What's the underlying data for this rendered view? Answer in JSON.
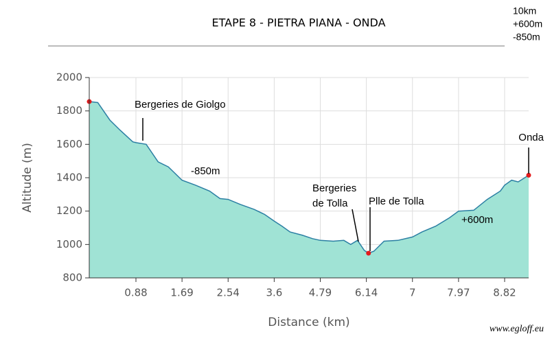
{
  "chart_data": {
    "type": "area",
    "title": "ETAPE 8 - PIETRA PIANA - ONDA",
    "x_label": "Distance (km)",
    "y_label": "Altitude (m)",
    "x": [
      0,
      0.16,
      0.39,
      0.58,
      0.82,
      0.88,
      1.06,
      1.27,
      1.45,
      1.69,
      1.94,
      2.2,
      2.39,
      2.54,
      2.82,
      3.14,
      3.38,
      3.6,
      3.8,
      4.01,
      4.33,
      4.59,
      4.79,
      5.17,
      5.48,
      5.68,
      5.88,
      6.08,
      6.18,
      6.28,
      6.47,
      6.73,
      7,
      7.2,
      7.49,
      7.78,
      7.97,
      8.25,
      8.5,
      8.74,
      8.82,
      8.96,
      9.09,
      9.3
    ],
    "values": [
      1856,
      1850,
      1745,
      1685,
      1615,
      1610,
      1600,
      1495,
      1465,
      1385,
      1355,
      1320,
      1275,
      1270,
      1240,
      1210,
      1180,
      1140,
      1110,
      1075,
      1055,
      1035,
      1025,
      1020,
      1025,
      1000,
      1025,
      965,
      948,
      960,
      1020,
      1025,
      1045,
      1075,
      1110,
      1160,
      1200,
      1205,
      1270,
      1320,
      1355,
      1385,
      1375,
      1415
    ],
    "color": "#a0e3d5",
    "line_color": "#2b7fa3",
    "xlim": [
      0,
      9.3
    ],
    "xticks": [
      0.88,
      1.69,
      2.54,
      3.6,
      4.79,
      6.14,
      7,
      7.97,
      8.82
    ],
    "ylim": [
      800,
      2000
    ],
    "yticks": [
      800,
      1000,
      1200,
      1400,
      1600,
      1800,
      2000
    ],
    "grid": true,
    "annotations": [
      "Bergeries de Giolgo",
      "-850m",
      "Bergeries",
      "de Tolla",
      "Plle de Tolla",
      "+600m",
      "Onda"
    ],
    "summary": [
      "10km",
      "+600m",
      "-850m"
    ],
    "source": "www.egloff.eu"
  }
}
